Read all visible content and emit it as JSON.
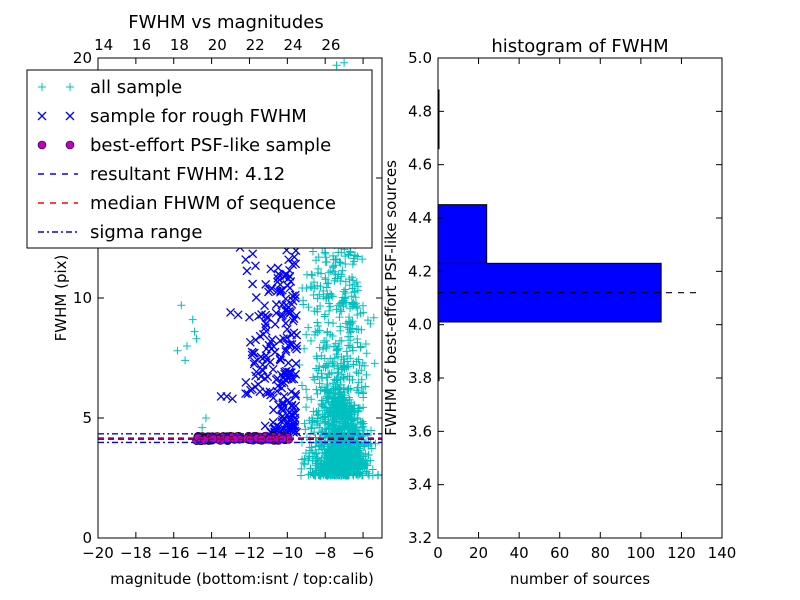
{
  "chart_data": [
    {
      "type": "scatter",
      "title": "FWHM vs magnitudes",
      "xlabel": "magnitude (bottom:isnt / top:calib)",
      "ylabel": "FWHM (pix)",
      "xlim": [
        -20,
        -5
      ],
      "ylim": [
        0,
        20
      ],
      "x_ticks": [
        "−20",
        "−18",
        "−16",
        "−14",
        "−12",
        "−10",
        "−8",
        "−6"
      ],
      "x_tick_values": [
        -20,
        -18,
        -16,
        -14,
        -12,
        -10,
        -8,
        -6
      ],
      "y_ticks": [
        "0",
        "5",
        "10",
        "15",
        "20"
      ],
      "y_tick_values": [
        0,
        5,
        10,
        15,
        20
      ],
      "top_ticks": [
        "14",
        "16",
        "18",
        "20",
        "22",
        "24",
        "26"
      ],
      "top_tick_values": [
        14,
        16,
        18,
        20,
        22,
        24,
        26
      ],
      "top_offset": 33.7,
      "legend_loc": "upper-left",
      "series": [
        {
          "name": "all sample",
          "marker": "+",
          "color": "#00bfbf",
          "clusters": [
            {
              "x": [
                -9.8,
                -5.0
              ],
              "y": [
                2.6,
                20.0
              ],
              "count": 900
            },
            {
              "x": [
                -8.5,
                -5.5
              ],
              "y": [
                3.0,
                7.0
              ],
              "count": 700
            }
          ],
          "points": [
            {
              "x": -15.6,
              "y": 9.7
            },
            {
              "x": -15.0,
              "y": 9.1
            },
            {
              "x": -14.9,
              "y": 8.6
            },
            {
              "x": -15.3,
              "y": 8.0
            },
            {
              "x": -15.8,
              "y": 7.8
            },
            {
              "x": -15.4,
              "y": 7.4
            },
            {
              "x": -14.8,
              "y": 8.3
            },
            {
              "x": -14.3,
              "y": 5.0
            },
            {
              "x": -14.5,
              "y": 4.6
            },
            {
              "x": -7.4,
              "y": 19.7
            },
            {
              "x": -7.0,
              "y": 19.8
            }
          ]
        },
        {
          "name": "sample for rough FWHM",
          "marker": "x",
          "color": "#0000ff",
          "clusters": [
            {
              "x": [
                -11.2,
                -9.5
              ],
              "y": [
                4.4,
                12.0
              ],
              "count": 170
            },
            {
              "x": [
                -12.3,
                -11.0
              ],
              "y": [
                6.0,
                12.0
              ],
              "count": 45
            }
          ],
          "points": [
            {
              "x": -12.5,
              "y": 12.1
            },
            {
              "x": -12.2,
              "y": 11.6
            },
            {
              "x": -13.0,
              "y": 9.4
            },
            {
              "x": -12.6,
              "y": 9.3
            },
            {
              "x": -12.0,
              "y": 9.2
            },
            {
              "x": -11.8,
              "y": 7.7
            },
            {
              "x": -13.2,
              "y": 5.9
            },
            {
              "x": -12.9,
              "y": 5.8
            },
            {
              "x": -11.7,
              "y": 6.3
            },
            {
              "x": -13.5,
              "y": 5.9
            }
          ]
        },
        {
          "name": "best-effort PSF-like sample",
          "marker": "o",
          "color": "#bf00bf",
          "clusters": [
            {
              "x": [
                -14.8,
                -9.9
              ],
              "y": [
                4.05,
                4.25
              ],
              "count": 110
            }
          ]
        },
        {
          "name": "resultant FWHM: 4.12",
          "type": "hline",
          "style": "dashed",
          "color": "#0000ff",
          "y": 4.12
        },
        {
          "name": "median FHWM of sequence",
          "type": "hline",
          "style": "dashed",
          "color": "#ff0000",
          "y": 4.17
        },
        {
          "name": "sigma range",
          "type": "hline",
          "style": "dashdot",
          "color": "#0000ff",
          "y_values": [
            3.98,
            4.34
          ]
        }
      ]
    },
    {
      "type": "bar",
      "orientation": "horizontal",
      "title": "histogram of FWHM",
      "xlabel": "number of sources",
      "ylabel": "FWHM of best-effort PSF-like sources",
      "xlim": [
        0,
        140
      ],
      "ylim": [
        3.2,
        5.0
      ],
      "x_ticks": [
        "0",
        "20",
        "40",
        "60",
        "80",
        "100",
        "120",
        "140"
      ],
      "x_tick_values": [
        0,
        20,
        40,
        60,
        80,
        100,
        120,
        140
      ],
      "y_ticks": [
        "3.2",
        "3.4",
        "3.6",
        "3.8",
        "4.0",
        "4.2",
        "4.4",
        "4.6",
        "4.8",
        "5.0"
      ],
      "y_tick_values": [
        3.2,
        3.4,
        3.6,
        3.8,
        4.0,
        4.2,
        4.4,
        4.6,
        4.8,
        5.0
      ],
      "color": "#0000ff",
      "bins": [
        {
          "y0": 3.79,
          "y1": 4.01,
          "value": 0.5
        },
        {
          "y0": 4.01,
          "y1": 4.23,
          "value": 110
        },
        {
          "y0": 4.23,
          "y1": 4.45,
          "value": 24
        },
        {
          "y0": 4.45,
          "y1": 4.66,
          "value": 0
        },
        {
          "y0": 4.66,
          "y1": 4.88,
          "value": 0.5
        }
      ],
      "reference_line": {
        "y": 4.12,
        "style": "dashed",
        "x_range": [
          0,
          130
        ]
      }
    }
  ]
}
